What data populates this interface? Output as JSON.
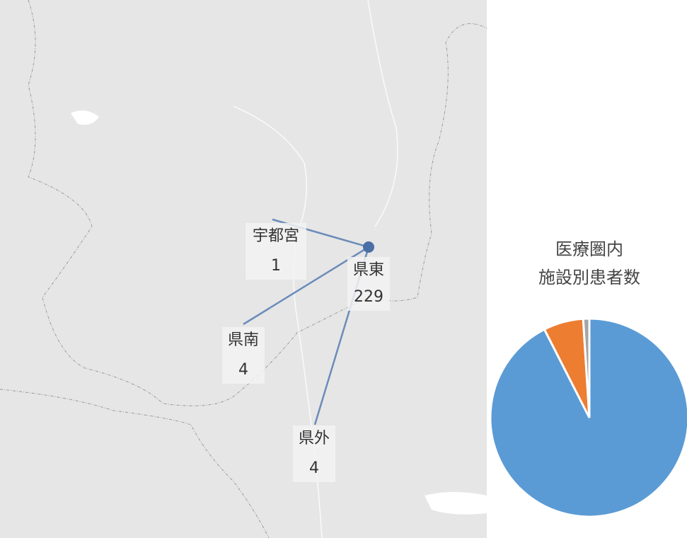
{
  "map": {
    "hub": {
      "label": "県東",
      "value": 229
    },
    "nodes": [
      {
        "label": "宇都宮",
        "value": 1
      },
      {
        "label": "県南",
        "value": 4
      },
      {
        "label": "県外",
        "value": 4
      }
    ]
  },
  "chart_data": {
    "type": "pie",
    "title": [
      "医療圏内",
      "施設別患者数"
    ],
    "values": [
      92.5,
      6.5,
      1
    ],
    "colors": [
      "#5b9bd5",
      "#ed7d31",
      "#a5a5a5"
    ]
  }
}
